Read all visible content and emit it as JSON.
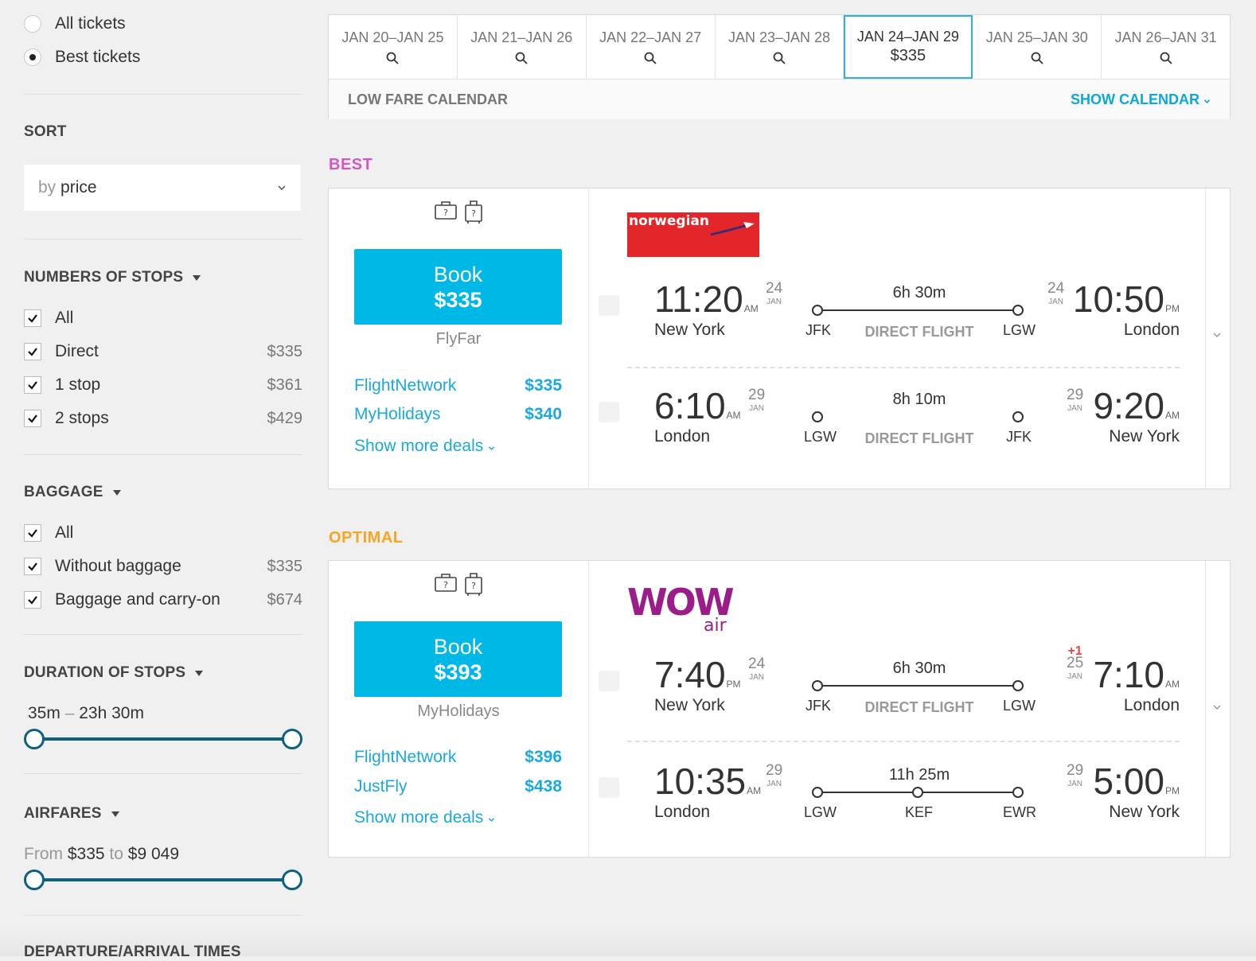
{
  "filters": {
    "ticket_type": {
      "options": [
        "All tickets",
        "Best tickets"
      ],
      "selected": "Best tickets"
    },
    "sort": {
      "title": "SORT",
      "prefix": "by",
      "value": "price"
    },
    "stops": {
      "title": "NUMBERS OF STOPS",
      "items": [
        {
          "label": "All",
          "price": "",
          "checked": true
        },
        {
          "label": "Direct",
          "price": "$335",
          "checked": true
        },
        {
          "label": "1 stop",
          "price": "$361",
          "checked": true
        },
        {
          "label": "2 stops",
          "price": "$429",
          "checked": true
        }
      ]
    },
    "baggage": {
      "title": "BAGGAGE",
      "items": [
        {
          "label": "All",
          "price": "",
          "checked": true
        },
        {
          "label": "Without baggage",
          "price": "$335",
          "checked": true
        },
        {
          "label": "Baggage and carry-on",
          "price": "$674",
          "checked": true
        }
      ]
    },
    "duration": {
      "title": "DURATION OF STOPS",
      "min": "35m",
      "sep": "–",
      "max": "23h 30m"
    },
    "airfares": {
      "title": "AIRFARES",
      "from_label": "From",
      "from": "$335",
      "to_label": "to",
      "to": "$9 049"
    },
    "next_title": "DEPARTURE/ARRIVAL TIMES"
  },
  "datebar": {
    "dates": [
      {
        "label": "JAN 20–JAN 25",
        "price": ""
      },
      {
        "label": "JAN 21–JAN 26",
        "price": ""
      },
      {
        "label": "JAN 22–JAN 27",
        "price": ""
      },
      {
        "label": "JAN 23–JAN 28",
        "price": ""
      },
      {
        "label": "JAN 24–JAN 29",
        "price": "$335",
        "selected": true
      },
      {
        "label": "JAN 25–JAN 30",
        "price": ""
      },
      {
        "label": "JAN 26–JAN 31",
        "price": ""
      }
    ],
    "low_fare": "LOW FARE CALENDAR",
    "show_calendar": "SHOW CALENDAR"
  },
  "results": [
    {
      "group": "BEST",
      "group_color": "#d357c0",
      "book_label": "Book",
      "book_price": "$335",
      "vendor": "FlyFar",
      "deals": [
        {
          "name": "FlightNetwork",
          "price": "$335"
        },
        {
          "name": "MyHolidays",
          "price": "$340"
        }
      ],
      "more": "Show more deals",
      "airline": "norwegian",
      "legs": [
        {
          "dep_time": "11:20",
          "dep_ampm": "AM",
          "dep_day": "24",
          "dep_month": "JAN",
          "dep_city": "New York",
          "duration": "6h 30m",
          "from": "JFK",
          "to": "LGW",
          "kind": "DIRECT FLIGHT",
          "via": "",
          "arr_time": "10:50",
          "arr_ampm": "PM",
          "arr_day": "24",
          "arr_month": "JAN",
          "arr_plus": "",
          "arr_city": "London"
        },
        {
          "dep_time": "6:10",
          "dep_ampm": "AM",
          "dep_day": "29",
          "dep_month": "JAN",
          "dep_city": "London",
          "duration": "8h 10m",
          "from": "LGW",
          "to": "JFK",
          "kind": "DIRECT FLIGHT",
          "via": "",
          "arr_time": "9:20",
          "arr_ampm": "AM",
          "arr_day": "29",
          "arr_month": "JAN",
          "arr_plus": "",
          "arr_city": "New York"
        }
      ]
    },
    {
      "group": "OPTIMAL",
      "group_color": "#f5a623",
      "book_label": "Book",
      "book_price": "$393",
      "vendor": "MyHolidays",
      "deals": [
        {
          "name": "FlightNetwork",
          "price": "$396"
        },
        {
          "name": "JustFly",
          "price": "$438"
        }
      ],
      "more": "Show more deals",
      "airline": "wow air",
      "legs": [
        {
          "dep_time": "7:40",
          "dep_ampm": "PM",
          "dep_day": "24",
          "dep_month": "JAN",
          "dep_city": "New York",
          "duration": "6h 30m",
          "from": "JFK",
          "to": "LGW",
          "kind": "DIRECT FLIGHT",
          "via": "",
          "arr_time": "7:10",
          "arr_ampm": "AM",
          "arr_day": "25",
          "arr_month": "JAN",
          "arr_plus": "+1",
          "arr_city": "London"
        },
        {
          "dep_time": "10:35",
          "dep_ampm": "AM",
          "dep_day": "29",
          "dep_month": "JAN",
          "dep_city": "London",
          "duration": "11h 25m",
          "from": "LGW",
          "to": "EWR",
          "kind": "",
          "via": "KEF",
          "arr_time": "5:00",
          "arr_ampm": "PM",
          "arr_day": "29",
          "arr_month": "JAN",
          "arr_plus": "",
          "arr_city": "New York"
        }
      ]
    }
  ]
}
